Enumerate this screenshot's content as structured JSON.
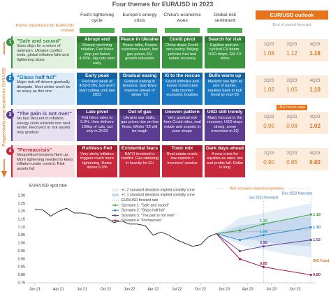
{
  "title": "Four themes for EUR/USD in 2023",
  "importance_note": "Theme importance for EUR/USD outlook",
  "side_label": "Progressively more bearish for EUR/USD",
  "themes": [
    "Fed's tightening cycle",
    "Europe's energy crisis",
    "China's economic woes",
    "Global risk sentiment"
  ],
  "outlook": {
    "title": "EUR/USD outlook",
    "subtitle": "End of period forecast",
    "quarters": [
      "1Q23",
      "2Q23",
      "4Q23"
    ]
  },
  "scenarios": [
    {
      "number": "1",
      "name": "\"Safe and sound\"",
      "color": "#3a9440",
      "tint": "#e2f0e0",
      "text": "Stars align for a return of optimism. Ukraine conflict ends, global inflation falls and tightening stops",
      "cells": [
        {
          "title": "Abrupt end",
          "text": "Sharply declining inflation, Fed hikes stop just below 4.50%, big cuts start early"
        },
        {
          "title": "Peace in Ukraine",
          "text": "Peace talks, Russia sanctions eased, low gas prices, EU growth rebounds"
        },
        {
          "title": "Covid pivot",
          "text": "China drops Covid-zero policy, Beijing policies fuel real estate recovery"
        },
        {
          "title": "Search for risk",
          "text": "Equities and pro-cyclical FX boom. USD drops, EM FX shine"
        }
      ],
      "forecast": [
        "1.08",
        "1.12",
        "1.18"
      ]
    },
    {
      "number": "2",
      "name": "\"Glass half full\"",
      "color": "#1a78c2",
      "tint": "#dcebf7",
      "text": "Major risk-off drivers gradually dissipate. Next winter won't be as scary as this one",
      "cells": [
        {
          "title": "Early peak",
          "text": "Fed rates peak at 4.50-5.0%, but won't start cutting until late 2023"
        },
        {
          "title": "Gradual easing",
          "text": "Gradual easing in tensions. Gas flows improve ahead of winter '23"
        },
        {
          "title": "Xi to the rescue",
          "text": "Fiscal stimulus and looser Covid rules help counter economic troubles"
        },
        {
          "title": "Bulls warm up",
          "text": "Markets see light at end of tunnel, equities back in bull trend by mid-'23"
        }
      ],
      "forecast": [
        "1.02",
        "1.05",
        "1.10"
      ]
    },
    {
      "number": "3",
      "name": "\"The pain is not over\"",
      "color": "#5c3d91",
      "tint": "#e7e0f0",
      "text": "No fast descent in inflation, energy crisis extends into next winter. Recovery in risk assets only gradual",
      "house_view": "ING house view",
      "cells": [
        {
          "title": "Late pivot",
          "text": "Fed hikes rates to 5.0%, then delivers 100bp of cuts, but only in 2H23"
        },
        {
          "title": "Out of gas",
          "text": "Ukraine war stalls, gas prices rise on low flows. Winter '23 will be tough"
        },
        {
          "title": "Uneven pattern",
          "text": "Very gradual exit from Covid rules, real estate and exports in poor shape"
        },
        {
          "title": "USD still trendy",
          "text": "Many hiccups in the recovery. USD stays strong, some overshoot in 2Q"
        }
      ],
      "forecast": [
        "0.95",
        "0.98",
        "1.02"
      ]
    },
    {
      "number": "4",
      "name": "\"Permacrisis\"",
      "color": "#c8283c",
      "tint": "#f8dcdf",
      "text": "Geopolitical tensions flare up. More tightening needed to keep inflation under control. Risk assets fall",
      "cells": [
        {
          "title": "Ruthless Fed",
          "text": "Very sticky inflation triggers much more tightening. Rates above 6.0%"
        },
        {
          "title": "Existential fears",
          "text": "NATO involved in conflict. Gas rationing in heavily-hit EU"
        },
        {
          "title": "Toxic mix",
          "text": "Real estate crash, low exports = investors' exodus"
        },
        {
          "title": "Dark days ahead",
          "text": "A new crisis for equities as rates rise and profits fall. Dollar is king"
        }
      ],
      "forecast": [
        "0.90",
        "0.85",
        "0.80"
      ]
    }
  ],
  "chart_data": {
    "type": "line",
    "title": "EUR/USD spot rate",
    "annotations": [
      "ING scenario-based projections",
      "Jun 2023 forecasts",
      "Dec 2023 forecasts",
      "ING f'cast"
    ],
    "ylim": [
      0.75,
      1.3
    ],
    "yticks": [
      {
        "value": 0.75,
        "label": "0.75"
      },
      {
        "value": 0.8,
        "label": "0.80"
      },
      0.85,
      {
        "value": 0.9,
        "label": "0.90"
      },
      0.95,
      {
        "value": 1.0,
        "label": "1.00"
      },
      1.05,
      {
        "value": 1.1,
        "label": "1.10"
      },
      1.15,
      {
        "value": 1.2,
        "label": "1.20"
      },
      1.25,
      {
        "value": 1.3,
        "label": "1.30"
      }
    ],
    "xticks": [
      {
        "value": "2021-01",
        "label": "Jan 21"
      },
      {
        "value": "2021-04",
        "label": "Apr 21"
      },
      {
        "value": "2021-07",
        "label": "Jul 21"
      },
      {
        "value": "2021-10",
        "label": "Oct 21"
      },
      {
        "value": "2022-01",
        "label": "Jan 22"
      },
      {
        "value": "2022-04",
        "label": "Apr 22"
      },
      {
        "value": "2022-07",
        "label": "Jul 22"
      },
      {
        "value": "2022-10",
        "label": "Oct 22"
      },
      {
        "value": "2023-01",
        "label": "Jan 23"
      },
      {
        "value": "2023-04",
        "label": "Apr 23"
      },
      {
        "value": "2023-07",
        "label": "Jul 23"
      },
      {
        "value": "2023-10",
        "label": "Oct 23"
      }
    ],
    "grid": false,
    "spot": {
      "color": "#000000",
      "x": [
        "2021-01",
        "2021-02",
        "2021-03",
        "2021-04",
        "2021-05",
        "2021-06",
        "2021-07",
        "2021-08",
        "2021-09",
        "2021-10",
        "2021-11",
        "2021-12",
        "2022-01",
        "2022-02",
        "2022-03",
        "2022-04",
        "2022-05",
        "2022-06",
        "2022-07",
        "2022-08",
        "2022-09",
        "2022-10",
        "2022-11",
        "2022-12"
      ],
      "values": [
        1.21,
        1.21,
        1.17,
        1.2,
        1.22,
        1.19,
        1.19,
        1.18,
        1.16,
        1.16,
        1.13,
        1.14,
        1.12,
        1.12,
        1.11,
        1.05,
        1.07,
        1.05,
        1.02,
        1.0,
        0.98,
        0.99,
        1.04,
        1.06
      ]
    },
    "cones": [
      {
        "name": "+/- 2 standard deviation implied volatility cone",
        "color": "#e3edf8",
        "x": [
          "2022-12",
          "2023-03",
          "2023-06",
          "2023-09",
          "2023-12"
        ],
        "upper": [
          1.06,
          1.16,
          1.19,
          1.22,
          1.25
        ],
        "lower": [
          1.06,
          0.99,
          0.96,
          0.93,
          0.91
        ]
      },
      {
        "name": "+/- 1 standard deviation implied volatility cone",
        "color": "#c6d9ee",
        "x": [
          "2022-12",
          "2023-03",
          "2023-06",
          "2023-09",
          "2023-12"
        ],
        "upper": [
          1.06,
          1.11,
          1.13,
          1.15,
          1.17
        ],
        "lower": [
          1.06,
          1.03,
          1.01,
          0.99,
          0.98
        ]
      }
    ],
    "series": [
      {
        "name": "EUR/USD forward rate",
        "color": "#9a9a9a",
        "dash": true,
        "x": [
          "2022-12",
          "2023-03",
          "2023-06",
          "2023-09",
          "2023-12"
        ],
        "values": [
          1.06,
          1.07,
          1.075,
          1.08,
          1.085
        ]
      },
      {
        "name": "Scenario 1: \"Safe and sound\"",
        "color": "#3aa53a",
        "x": [
          "2022-12",
          "2023-03",
          "2023-06",
          "2023-12"
        ],
        "values": [
          1.06,
          1.08,
          1.12,
          1.18
        ],
        "value_labels": [
          null,
          null,
          "1.12",
          "1.18"
        ]
      },
      {
        "name": "Scenario 2: \"Glass half full\"",
        "color": "#2a8ad0",
        "x": [
          "2022-12",
          "2023-03",
          "2023-06",
          "2023-12"
        ],
        "values": [
          1.06,
          1.02,
          1.05,
          1.1
        ],
        "value_labels": [
          null,
          null,
          "1.05",
          "1.10"
        ]
      },
      {
        "name": "Scenario 3: \"The pain is not over\"",
        "color": "#6a3d9a",
        "x": [
          "2022-12",
          "2023-03",
          "2023-06",
          "2023-12"
        ],
        "values": [
          1.06,
          0.95,
          0.98,
          1.02
        ],
        "value_labels": [
          null,
          null,
          "0.98",
          "1.02"
        ]
      },
      {
        "name": "Scenario 4: \"Permacrisis\"",
        "color": "#b0174a",
        "x": [
          "2022-12",
          "2023-03",
          "2023-06",
          "2023-12"
        ],
        "values": [
          1.06,
          0.9,
          0.85,
          0.8
        ],
        "value_labels": [
          null,
          null,
          "0.85",
          "0.80"
        ]
      }
    ]
  }
}
